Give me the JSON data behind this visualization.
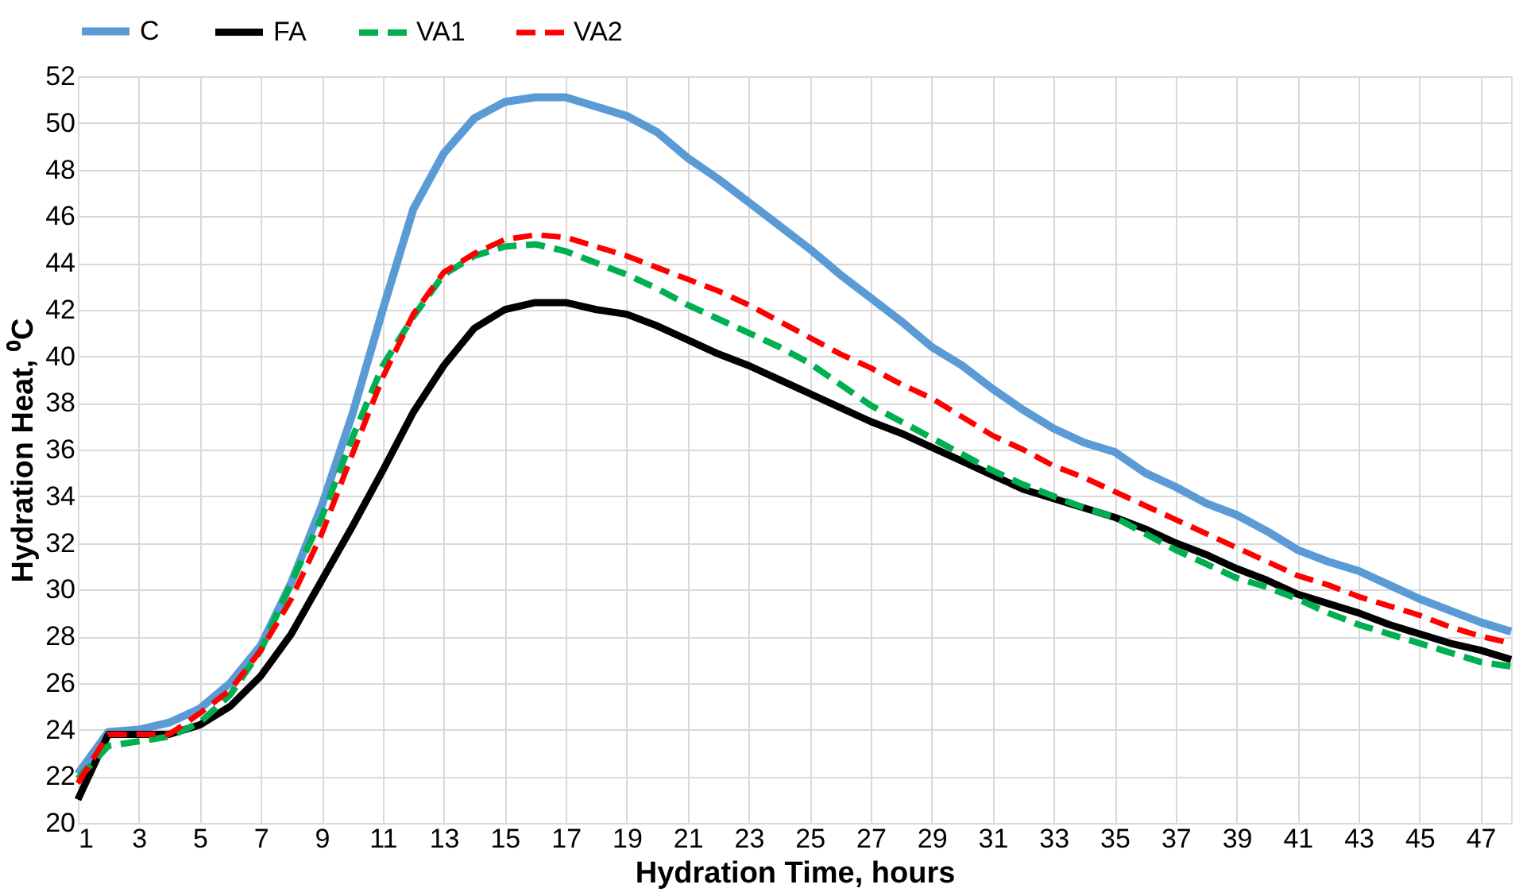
{
  "chart_data": {
    "type": "line",
    "xlabel": "Hydration Time, hours",
    "ylabel": "Hydration Heat, ⁰C",
    "x": [
      1,
      2,
      3,
      4,
      5,
      6,
      7,
      8,
      9,
      10,
      11,
      12,
      13,
      14,
      15,
      16,
      17,
      18,
      19,
      20,
      21,
      22,
      23,
      24,
      25,
      26,
      27,
      28,
      29,
      30,
      31,
      32,
      33,
      34,
      35,
      36,
      37,
      38,
      39,
      40,
      41,
      42,
      43,
      44,
      45,
      46,
      47,
      48
    ],
    "xlim": [
      1,
      48
    ],
    "xticks": [
      1,
      3,
      5,
      7,
      9,
      11,
      13,
      15,
      17,
      19,
      21,
      23,
      25,
      27,
      29,
      31,
      33,
      35,
      37,
      39,
      41,
      43,
      45,
      47
    ],
    "ylim": [
      20,
      52
    ],
    "yticks": [
      20,
      22,
      24,
      26,
      28,
      30,
      32,
      34,
      36,
      38,
      40,
      42,
      44,
      46,
      48,
      50,
      52
    ],
    "grid": true,
    "legend": "top",
    "marker": "none",
    "series": [
      {
        "name": "C",
        "color": "#5b9bd5",
        "line_style": "solid",
        "values": [
          22.1,
          23.9,
          24.0,
          24.3,
          24.9,
          26.0,
          27.6,
          30.3,
          33.6,
          37.5,
          42.0,
          46.3,
          48.7,
          50.2,
          50.9,
          51.1,
          51.1,
          50.7,
          50.3,
          49.6,
          48.5,
          47.6,
          46.6,
          45.6,
          44.6,
          43.5,
          42.5,
          41.5,
          40.4,
          39.6,
          38.6,
          37.7,
          36.9,
          36.3,
          35.9,
          35.0,
          34.4,
          33.7,
          33.2,
          32.5,
          31.7,
          31.2,
          30.8,
          30.2,
          29.6,
          29.1,
          28.6,
          28.2
        ]
      },
      {
        "name": "FA",
        "color": "#000000",
        "line_style": "solid",
        "values": [
          21.0,
          23.8,
          23.8,
          23.8,
          24.2,
          25.0,
          26.3,
          28.1,
          30.4,
          32.7,
          35.1,
          37.6,
          39.6,
          41.2,
          42.0,
          42.3,
          42.3,
          42.0,
          41.8,
          41.3,
          40.7,
          40.1,
          39.6,
          39.0,
          38.4,
          37.8,
          37.2,
          36.7,
          36.1,
          35.5,
          34.9,
          34.3,
          33.9,
          33.5,
          33.1,
          32.6,
          32.0,
          31.5,
          30.9,
          30.4,
          29.8,
          29.4,
          29.0,
          28.5,
          28.1,
          27.7,
          27.4,
          27.0
        ]
      },
      {
        "name": "VA1",
        "color": "#00b050",
        "line_style": "dashed",
        "values": [
          21.9,
          23.3,
          23.5,
          23.7,
          24.3,
          25.5,
          27.4,
          30.3,
          33.1,
          36.5,
          39.6,
          41.7,
          43.5,
          44.3,
          44.7,
          44.8,
          44.5,
          44.0,
          43.5,
          42.9,
          42.2,
          41.6,
          41.0,
          40.4,
          39.7,
          38.8,
          37.9,
          37.2,
          36.5,
          35.8,
          35.1,
          34.5,
          34.0,
          33.5,
          33.1,
          32.4,
          31.7,
          31.1,
          30.5,
          30.1,
          29.6,
          29.0,
          28.5,
          28.1,
          27.7,
          27.3,
          26.9,
          26.7
        ]
      },
      {
        "name": "VA2",
        "color": "#ff0000",
        "line_style": "dashed",
        "values": [
          21.7,
          23.8,
          23.8,
          23.8,
          24.7,
          25.7,
          27.4,
          29.6,
          32.4,
          35.8,
          39.1,
          41.8,
          43.6,
          44.4,
          45.0,
          45.2,
          45.1,
          44.7,
          44.3,
          43.8,
          43.3,
          42.8,
          42.2,
          41.5,
          40.8,
          40.1,
          39.5,
          38.8,
          38.2,
          37.4,
          36.6,
          36.0,
          35.3,
          34.8,
          34.2,
          33.6,
          33.0,
          32.4,
          31.8,
          31.2,
          30.6,
          30.2,
          29.7,
          29.3,
          28.9,
          28.4,
          28.0,
          27.7
        ]
      }
    ]
  }
}
